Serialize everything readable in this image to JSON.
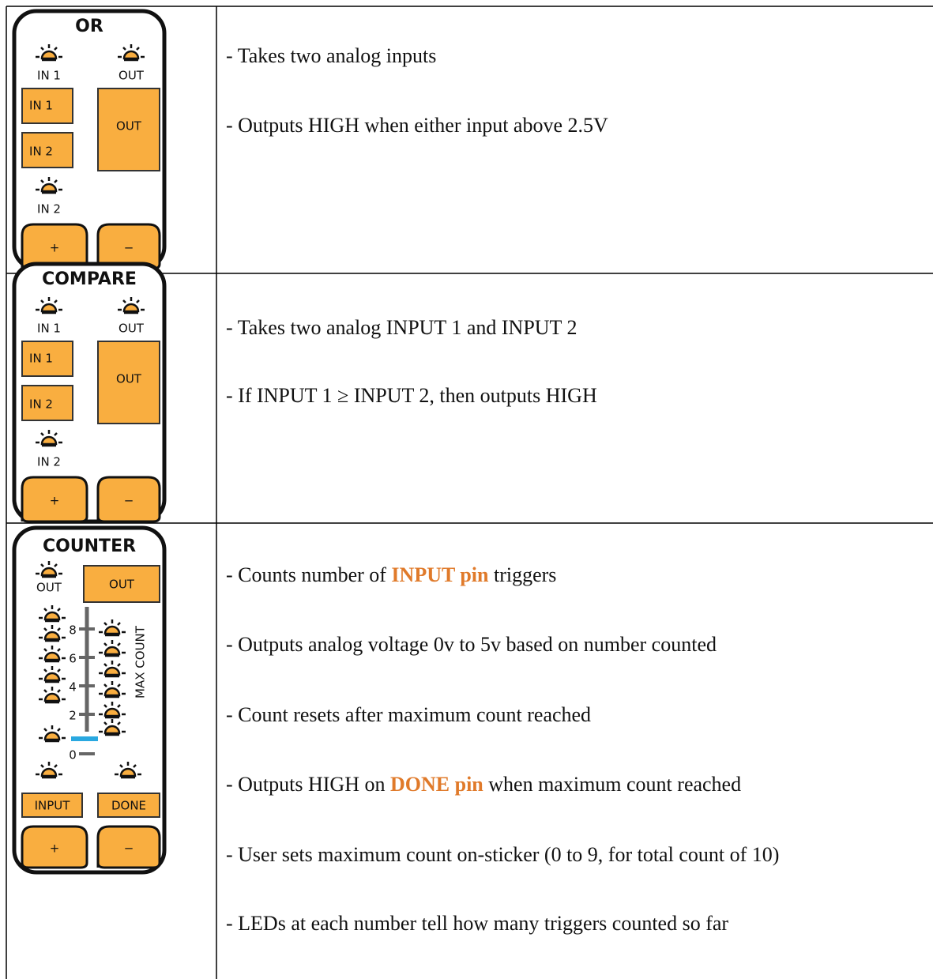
{
  "table": {
    "rows": [
      {
        "sticker": {
          "title": "OR",
          "led_in1": "IN 1",
          "led_out": "OUT",
          "pin_in1": "IN 1",
          "pin_in2": "IN 2",
          "pin_out": "OUT",
          "led_in2": "IN 2",
          "plus": "+",
          "minus": "−"
        },
        "description": [
          [
            {
              "text": "- Takes two analog inputs"
            }
          ],
          [
            {
              "text": "- Outputs HIGH when either input above 2.5V"
            }
          ]
        ]
      },
      {
        "sticker": {
          "title": "COMPARE",
          "led_in1": "IN 1",
          "led_out": "OUT",
          "pin_in1": "IN 1",
          "pin_in2": "IN 2",
          "pin_out": "OUT",
          "led_in2": "IN 2",
          "plus": "+",
          "minus": "−"
        },
        "description": [
          [
            {
              "text": "- Takes two analog INPUT 1 and INPUT 2"
            }
          ],
          [
            {
              "text": "- If INPUT 1 ≥ INPUT 2, then outputs HIGH"
            }
          ]
        ]
      },
      {
        "sticker": {
          "title": "COUNTER",
          "led_out": "OUT",
          "pin_out": "OUT",
          "scale": [
            "8",
            "6",
            "4",
            "2",
            "0"
          ],
          "axis_label": "MAX COUNT",
          "pin_input": "INPUT",
          "pin_done": "DONE",
          "plus": "+",
          "minus": "−"
        },
        "description": [
          [
            {
              "text": "- Counts number of "
            },
            {
              "text": "INPUT pin",
              "emphasis": true
            },
            {
              "text": " triggers"
            }
          ],
          [
            {
              "text": "- Outputs analog voltage 0v to 5v based on number counted"
            }
          ],
          [
            {
              "text": "- Count resets after maximum count reached"
            }
          ],
          [
            {
              "text": "- Outputs HIGH on "
            },
            {
              "text": "DONE pin",
              "emphasis": true
            },
            {
              "text": " when maximum count reached"
            }
          ],
          [
            {
              "text": "- User sets maximum count on-sticker (0 to 9, for total count of 10)"
            }
          ],
          [
            {
              "text": "- LEDs at each number tell how many triggers counted so far"
            }
          ]
        ]
      }
    ]
  }
}
